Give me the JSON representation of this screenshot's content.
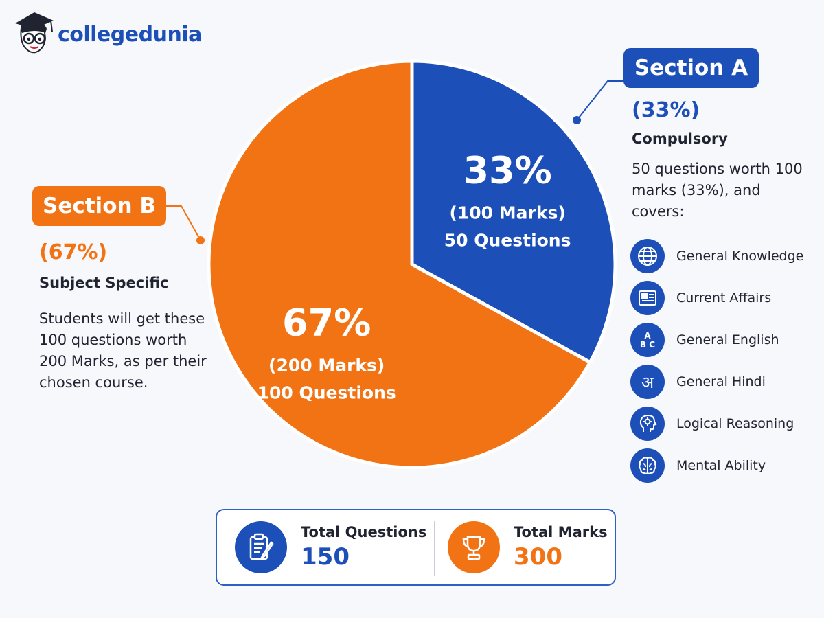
{
  "brand": {
    "name": "collegedunia"
  },
  "colors": {
    "section_a": "#1d4fb8",
    "section_b": "#f27314",
    "text": "#1f2430",
    "background": "#f7f8fb"
  },
  "chart_data": {
    "type": "pie",
    "slices": [
      {
        "label": "Section A",
        "value": 33,
        "pct_label": "33%",
        "marks_label": "(100 Marks)",
        "questions_label": "50 Questions",
        "color": "#1d4fb8"
      },
      {
        "label": "Section B",
        "value": 67,
        "pct_label": "67%",
        "marks_label": "(200 Marks)",
        "questions_label": "100 Questions",
        "color": "#f27314"
      }
    ]
  },
  "section_a": {
    "title": "Section A",
    "percent": "(33%)",
    "subtitle": "Compulsory",
    "description": "50 questions worth 100 marks (33%), and covers:",
    "topics": [
      {
        "label": "General Knowledge",
        "icon": "globe-icon"
      },
      {
        "label": "Current Affairs",
        "icon": "newspaper-icon"
      },
      {
        "label": "General English",
        "icon": "abc-icon",
        "glyph": "A\nB C"
      },
      {
        "label": "General Hindi",
        "icon": "hindi-letter-icon",
        "glyph": "अ"
      },
      {
        "label": "Logical Reasoning",
        "icon": "head-gear-icon"
      },
      {
        "label": "Mental Ability",
        "icon": "brain-icon"
      }
    ]
  },
  "section_b": {
    "title": "Section B",
    "percent": "(67%)",
    "subtitle": "Subject Specific",
    "description": "Students will get these 100 questions worth 200 Marks, as per their chosen course."
  },
  "totals": {
    "questions": {
      "label": "Total Questions",
      "value": "150",
      "icon": "clipboard-pen-icon"
    },
    "marks": {
      "label": "Total Marks",
      "value": "300",
      "icon": "trophy-icon"
    }
  }
}
